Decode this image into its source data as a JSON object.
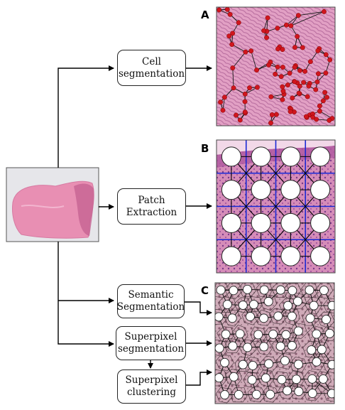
{
  "boxes": {
    "cell_segmentation": [
      "Cell",
      "segmentation"
    ],
    "patch_extraction": [
      "Patch",
      "Extraction"
    ],
    "semantic_segmentation": [
      "Semantic",
      "Segmentation"
    ],
    "superpixel_segmentation": [
      "Superpixel",
      "segmentation"
    ],
    "superpixel_clustering": [
      "Superpixel",
      "clustering"
    ]
  },
  "panels": {
    "a": "A",
    "b": "B",
    "c": "C"
  },
  "colors": {
    "tissue": "#e89ab8",
    "tissue_dark": "#c25c8c",
    "cell_node": "#d0161e",
    "patch_grid": "#1a2ad6",
    "superpixel_bg": "#c9a6b6"
  }
}
